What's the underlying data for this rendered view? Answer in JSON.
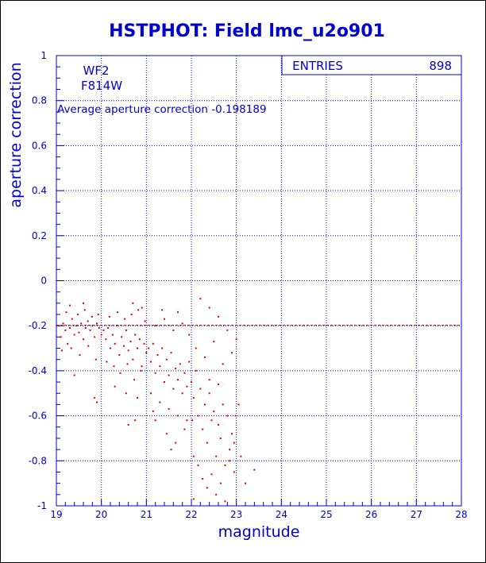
{
  "chart_data": {
    "type": "scatter",
    "title": "HSTPHOT: Field lmc_u2o901",
    "xlabel": "magnitude",
    "ylabel": "aperture correction",
    "xlim": [
      19,
      28
    ],
    "ylim": [
      -1,
      1
    ],
    "x_ticks": [
      "19",
      "20",
      "21",
      "22",
      "23",
      "24",
      "25",
      "26",
      "27",
      "28"
    ],
    "y_ticks": [
      "1",
      "0.8",
      "0.6",
      "0.4",
      "0.2",
      "0",
      "-0.2",
      "-0.4",
      "-0.6",
      "-0.8",
      "-1"
    ],
    "grid": true,
    "stats_box": {
      "label": "ENTRIES",
      "value": "898"
    },
    "annotations": {
      "chip": "WF2",
      "filter": "F814W",
      "average_text": "Average aperture correction -0.198189"
    },
    "reference_line": {
      "y": -0.198189
    },
    "series": [
      {
        "points": [
          [
            19.05,
            -0.2
          ],
          [
            19.1,
            -0.25
          ],
          [
            19.15,
            -0.19
          ],
          [
            19.2,
            -0.22
          ],
          [
            19.25,
            -0.28
          ],
          [
            19.3,
            -0.21
          ],
          [
            19.35,
            -0.17
          ],
          [
            19.4,
            -0.24
          ],
          [
            19.45,
            -0.2
          ],
          [
            19.5,
            -0.23
          ],
          [
            19.55,
            -0.19
          ],
          [
            19.6,
            -0.26
          ],
          [
            19.65,
            -0.21
          ],
          [
            19.7,
            -0.18
          ],
          [
            19.75,
            -0.22
          ],
          [
            19.8,
            -0.2
          ],
          [
            19.85,
            -0.25
          ],
          [
            19.9,
            -0.19
          ],
          [
            19.95,
            -0.21
          ],
          [
            20.0,
            -0.24
          ],
          [
            19.12,
            -0.31
          ],
          [
            19.33,
            -0.3
          ],
          [
            19.52,
            -0.33
          ],
          [
            19.71,
            -0.29
          ],
          [
            19.88,
            -0.35
          ],
          [
            19.22,
            -0.14
          ],
          [
            19.48,
            -0.15
          ],
          [
            19.63,
            -0.13
          ],
          [
            19.79,
            -0.16
          ],
          [
            19.93,
            -0.15
          ],
          [
            19.4,
            -0.42
          ],
          [
            19.85,
            -0.52
          ],
          [
            19.9,
            -0.54
          ],
          [
            19.3,
            -0.11
          ],
          [
            19.6,
            -0.1
          ],
          [
            20.05,
            -0.22
          ],
          [
            20.1,
            -0.26
          ],
          [
            20.15,
            -0.21
          ],
          [
            20.2,
            -0.3
          ],
          [
            20.25,
            -0.24
          ],
          [
            20.3,
            -0.28
          ],
          [
            20.35,
            -0.2
          ],
          [
            20.4,
            -0.33
          ],
          [
            20.45,
            -0.25
          ],
          [
            20.5,
            -0.29
          ],
          [
            20.55,
            -0.22
          ],
          [
            20.6,
            -0.31
          ],
          [
            20.65,
            -0.27
          ],
          [
            20.7,
            -0.35
          ],
          [
            20.75,
            -0.24
          ],
          [
            20.8,
            -0.3
          ],
          [
            20.85,
            -0.26
          ],
          [
            20.9,
            -0.38
          ],
          [
            20.95,
            -0.28
          ],
          [
            21.0,
            -0.32
          ],
          [
            20.12,
            -0.36
          ],
          [
            20.28,
            -0.38
          ],
          [
            20.42,
            -0.41
          ],
          [
            20.58,
            -0.37
          ],
          [
            20.73,
            -0.44
          ],
          [
            20.88,
            -0.4
          ],
          [
            20.18,
            -0.16
          ],
          [
            20.36,
            -0.14
          ],
          [
            20.52,
            -0.17
          ],
          [
            20.67,
            -0.15
          ],
          [
            20.82,
            -0.13
          ],
          [
            20.97,
            -0.18
          ],
          [
            20.3,
            -0.47
          ],
          [
            20.55,
            -0.5
          ],
          [
            20.8,
            -0.52
          ],
          [
            20.6,
            -0.64
          ],
          [
            20.75,
            -0.62
          ],
          [
            20.7,
            -0.1
          ],
          [
            20.9,
            -0.12
          ],
          [
            21.05,
            -0.3
          ],
          [
            21.1,
            -0.36
          ],
          [
            21.15,
            -0.28
          ],
          [
            21.2,
            -0.41
          ],
          [
            21.25,
            -0.33
          ],
          [
            21.3,
            -0.38
          ],
          [
            21.35,
            -0.3
          ],
          [
            21.4,
            -0.45
          ],
          [
            21.45,
            -0.35
          ],
          [
            21.5,
            -0.42
          ],
          [
            21.55,
            -0.32
          ],
          [
            21.6,
            -0.48
          ],
          [
            21.65,
            -0.39
          ],
          [
            21.7,
            -0.44
          ],
          [
            21.75,
            -0.37
          ],
          [
            21.8,
            -0.5
          ],
          [
            21.85,
            -0.41
          ],
          [
            21.9,
            -0.47
          ],
          [
            21.95,
            -0.36
          ],
          [
            21.1,
            -0.5
          ],
          [
            21.3,
            -0.54
          ],
          [
            21.5,
            -0.57
          ],
          [
            21.7,
            -0.6
          ],
          [
            21.9,
            -0.62
          ],
          [
            21.2,
            -0.62
          ],
          [
            21.45,
            -0.68
          ],
          [
            21.65,
            -0.72
          ],
          [
            21.85,
            -0.66
          ],
          [
            21.2,
            -0.2
          ],
          [
            21.4,
            -0.17
          ],
          [
            21.6,
            -0.22
          ],
          [
            21.8,
            -0.19
          ],
          [
            21.35,
            -0.13
          ],
          [
            21.7,
            -0.14
          ],
          [
            21.95,
            -0.24
          ],
          [
            21.15,
            -0.58
          ],
          [
            21.55,
            -0.75
          ],
          [
            22.0,
            -0.45
          ],
          [
            22.05,
            -0.52
          ],
          [
            22.1,
            -0.4
          ],
          [
            22.15,
            -0.6
          ],
          [
            22.2,
            -0.48
          ],
          [
            22.25,
            -0.66
          ],
          [
            22.3,
            -0.55
          ],
          [
            22.35,
            -0.72
          ],
          [
            22.4,
            -0.5
          ],
          [
            22.45,
            -0.62
          ],
          [
            22.5,
            -0.58
          ],
          [
            22.55,
            -0.78
          ],
          [
            22.6,
            -0.64
          ],
          [
            22.65,
            -0.7
          ],
          [
            22.7,
            -0.55
          ],
          [
            22.75,
            -0.82
          ],
          [
            22.8,
            -0.6
          ],
          [
            22.85,
            -0.75
          ],
          [
            22.9,
            -0.68
          ],
          [
            22.95,
            -0.85
          ],
          [
            22.05,
            -0.78
          ],
          [
            22.15,
            -0.82
          ],
          [
            22.25,
            -0.88
          ],
          [
            22.35,
            -0.92
          ],
          [
            22.45,
            -0.86
          ],
          [
            22.55,
            -0.95
          ],
          [
            22.65,
            -0.9
          ],
          [
            22.75,
            -0.98
          ],
          [
            22.85,
            -0.8
          ],
          [
            22.95,
            -0.72
          ],
          [
            22.1,
            -0.3
          ],
          [
            22.3,
            -0.34
          ],
          [
            22.5,
            -0.27
          ],
          [
            22.7,
            -0.37
          ],
          [
            22.9,
            -0.32
          ],
          [
            22.2,
            -0.08
          ],
          [
            22.4,
            -0.12
          ],
          [
            22.6,
            -0.16
          ],
          [
            22.8,
            -0.22
          ],
          [
            22.05,
            -0.97
          ],
          [
            22.02,
            -0.62
          ],
          [
            22.4,
            -0.44
          ],
          [
            22.6,
            -0.46
          ],
          [
            22.98,
            -0.6
          ],
          [
            23.0,
            -0.26
          ],
          [
            23.05,
            -0.55
          ],
          [
            23.1,
            -0.78
          ],
          [
            23.2,
            -0.9
          ],
          [
            23.4,
            -0.84
          ]
        ]
      }
    ],
    "colors": {
      "axes": "#0000cc",
      "points": "#dd0000",
      "title": "#0000cc"
    }
  }
}
